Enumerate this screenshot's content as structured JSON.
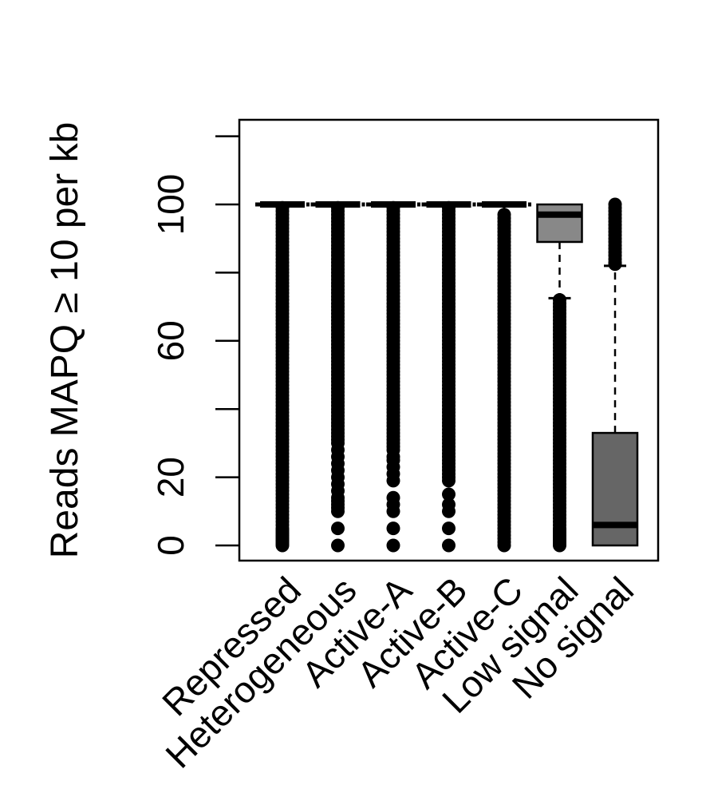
{
  "chart_data": {
    "type": "box",
    "title": "",
    "ylabel": "Reads MAPQ ≥ 10 per kb",
    "ylim": [
      -5,
      124
    ],
    "yticks": [
      0,
      20,
      40,
      60,
      80,
      100,
      120
    ],
    "ytick_labels": [
      "0",
      "20",
      "",
      "60",
      "",
      "100",
      ""
    ],
    "categories": [
      "Repressed",
      "Heterogeneous",
      "Active-A",
      "Active-B",
      "Active-C",
      "Low signal",
      "No signal"
    ],
    "boxes": [
      {
        "category": "Repressed",
        "min": 100,
        "q1": 100,
        "median": 100,
        "q3": 100,
        "max": 100,
        "fill": "#000000",
        "outliers": [
          0,
          0.5,
          1,
          1.5,
          2,
          2.5,
          3,
          3.5,
          4,
          4.5,
          5,
          6,
          7,
          8,
          9,
          10,
          11,
          12,
          13,
          14,
          15,
          16,
          17,
          18,
          19,
          20,
          21,
          22,
          23,
          24,
          25,
          26,
          27,
          28,
          29,
          30,
          31,
          32,
          33,
          34,
          35,
          36,
          37,
          38,
          39,
          40,
          41,
          42,
          43,
          44,
          45,
          46,
          47,
          48,
          49,
          50,
          51,
          52,
          53,
          54,
          55,
          56,
          57,
          58,
          59,
          60,
          61,
          62,
          63,
          64,
          65,
          66,
          67,
          68,
          69,
          70,
          71,
          72,
          73,
          74,
          75,
          76,
          77,
          78,
          79,
          80,
          81,
          82,
          83,
          84,
          85,
          86,
          87,
          88,
          89,
          90,
          91,
          92,
          93,
          94,
          95,
          96,
          97,
          98,
          99
        ]
      },
      {
        "category": "Heterogeneous",
        "min": 100,
        "q1": 100,
        "median": 100,
        "q3": 100,
        "max": 100,
        "fill": "#000000",
        "outliers": [
          0,
          5,
          10,
          11,
          12,
          13,
          14,
          16,
          18,
          20,
          22,
          24,
          26,
          28,
          30,
          31,
          32,
          33,
          34,
          35,
          36,
          37,
          38,
          39,
          40,
          41,
          42,
          43,
          44,
          45,
          46,
          47,
          48,
          49,
          50,
          51,
          52,
          53,
          54,
          55,
          56,
          57,
          58,
          59,
          60,
          61,
          62,
          63,
          64,
          65,
          66,
          67,
          68,
          69,
          70,
          71,
          72,
          73,
          74,
          75,
          76,
          77,
          78,
          79,
          80,
          81,
          82,
          83,
          84,
          85,
          86,
          87,
          88,
          89,
          90,
          91,
          92,
          93,
          94,
          95,
          96,
          97,
          98,
          99
        ]
      },
      {
        "category": "Active-A",
        "min": 100,
        "q1": 100,
        "median": 100,
        "q3": 100,
        "max": 100,
        "fill": "#000000",
        "outliers": [
          0,
          5,
          10,
          12,
          14,
          19,
          21,
          23,
          25,
          26,
          28,
          29,
          30,
          31,
          32,
          33,
          34,
          35,
          36,
          37,
          38,
          39,
          40,
          41,
          42,
          43,
          44,
          45,
          46,
          47,
          48,
          49,
          50,
          51,
          52,
          53,
          54,
          55,
          56,
          57,
          58,
          59,
          60,
          61,
          62,
          63,
          64,
          65,
          66,
          67,
          68,
          69,
          70,
          71,
          72,
          73,
          74,
          75,
          76,
          77,
          78,
          79,
          80,
          81,
          82,
          83,
          84,
          85,
          86,
          87,
          88,
          89,
          90,
          91,
          92,
          93,
          94,
          95,
          96,
          97,
          98,
          99
        ]
      },
      {
        "category": "Active-B",
        "min": 100,
        "q1": 100,
        "median": 100,
        "q3": 100,
        "max": 100,
        "fill": "#000000",
        "outliers": [
          0,
          5,
          10,
          12,
          15,
          19,
          20,
          21,
          22,
          23,
          24,
          25,
          26,
          27,
          28,
          29,
          30,
          31,
          32,
          33,
          34,
          35,
          36,
          37,
          38,
          39,
          40,
          41,
          42,
          43,
          44,
          45,
          46,
          47,
          48,
          49,
          50,
          51,
          52,
          53,
          54,
          55,
          56,
          57,
          58,
          59,
          60,
          61,
          62,
          63,
          64,
          65,
          66,
          67,
          68,
          69,
          70,
          71,
          72,
          73,
          74,
          75,
          76,
          77,
          78,
          79,
          80,
          81,
          82,
          83,
          84,
          85,
          86,
          87,
          88,
          89,
          90,
          91,
          92,
          93,
          94,
          95,
          96,
          97,
          98,
          99
        ]
      },
      {
        "category": "Active-C",
        "min": 98,
        "q1": 100,
        "median": 100,
        "q3": 100,
        "max": 100,
        "fill": "#000000",
        "outliers": [
          0,
          1,
          2,
          3,
          4,
          5,
          6,
          7,
          8,
          9,
          10,
          11,
          12,
          13,
          14,
          15,
          16,
          17,
          18,
          19,
          20,
          21,
          22,
          23,
          24,
          25,
          26,
          27,
          28,
          29,
          30,
          31,
          32,
          33,
          34,
          35,
          36,
          37,
          38,
          39,
          40,
          41,
          42,
          43,
          44,
          45,
          46,
          47,
          48,
          49,
          50,
          51,
          52,
          53,
          54,
          55,
          56,
          57,
          58,
          59,
          60,
          61,
          62,
          63,
          64,
          65,
          66,
          67,
          68,
          69,
          70,
          71,
          72,
          73,
          74,
          75,
          76,
          77,
          78,
          79,
          80,
          81,
          82,
          83,
          84,
          85,
          86,
          87,
          88,
          89,
          90,
          91,
          92,
          93,
          94,
          95,
          96,
          97
        ]
      },
      {
        "category": "Low signal",
        "min": 72.5,
        "q1": 89,
        "median": 97,
        "q3": 100,
        "max": 100,
        "fill": "#888888",
        "outliers": [
          0,
          0.5,
          1,
          1.5,
          2,
          2.5,
          3,
          3.5,
          4,
          4.5,
          5,
          6,
          7,
          8,
          9,
          10,
          11,
          12,
          13,
          14,
          15,
          16,
          17,
          18,
          19,
          20,
          21,
          22,
          23,
          24,
          25,
          26,
          27,
          28,
          29,
          30,
          31,
          32,
          33,
          34,
          35,
          36,
          37,
          38,
          39,
          40,
          41,
          42,
          43,
          44,
          45,
          46,
          47,
          48,
          49,
          50,
          51,
          52,
          53,
          54,
          55,
          56,
          57,
          58,
          59,
          60,
          61,
          62,
          63,
          64,
          65,
          66,
          67,
          68,
          69,
          70,
          71,
          72
        ]
      },
      {
        "category": "No signal",
        "min": 0,
        "q1": 0,
        "median": 6,
        "q3": 33,
        "max": 82,
        "fill": "#666666",
        "outliers": [
          82.5,
          83,
          84,
          85,
          86,
          87,
          88,
          89,
          90,
          91,
          92,
          93,
          94,
          95,
          96,
          97,
          98,
          99,
          100
        ]
      }
    ]
  }
}
